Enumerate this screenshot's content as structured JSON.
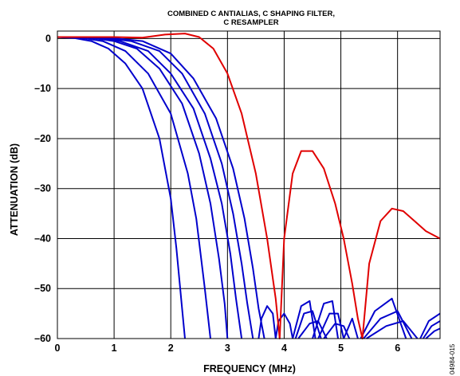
{
  "chart_data": {
    "type": "line",
    "title_line1": "COMBINED C ANTIALIAS, C SHAPING FILTER,",
    "title_line2": "C RESAMPLER",
    "xlabel": "FREQUENCY (MHz)",
    "ylabel": "ATTENUATION (dB)",
    "xlim": [
      0,
      6.75
    ],
    "ylim": [
      -60,
      1.5
    ],
    "x_ticks": [
      0,
      1,
      2,
      3,
      4,
      5,
      6
    ],
    "y_ticks": [
      0,
      -10,
      -20,
      -30,
      -40,
      -50,
      -60
    ],
    "x_tick_labels": [
      "0",
      "1",
      "2",
      "3",
      "4",
      "5",
      "6"
    ],
    "y_tick_labels": [
      "0",
      "–10",
      "–20",
      "–30",
      "–40",
      "–50",
      "–60"
    ],
    "grid": true,
    "series": [
      {
        "color": "#0000cc",
        "x": [
          0,
          0.3,
          0.6,
          0.9,
          1.2,
          1.5,
          1.8,
          2.0,
          2.1,
          2.2,
          2.25
        ],
        "y": [
          0.3,
          0.1,
          -0.5,
          -2,
          -5,
          -10,
          -20,
          -32,
          -42,
          -54,
          -60
        ]
      },
      {
        "color": "#0000cc",
        "x": [
          0,
          0.4,
          0.8,
          1.2,
          1.6,
          2.0,
          2.3,
          2.45,
          2.6,
          2.7
        ],
        "y": [
          0.3,
          0.2,
          -0.5,
          -2.5,
          -7,
          -15,
          -27,
          -36,
          -50,
          -60
        ]
      },
      {
        "color": "#0000cc",
        "x": [
          0,
          0.5,
          1.0,
          1.4,
          1.8,
          2.2,
          2.5,
          2.7,
          2.85,
          2.95,
          3.0
        ],
        "y": [
          0.3,
          0.3,
          -0.5,
          -2,
          -6,
          -13,
          -23,
          -33,
          -44,
          -53,
          -60
        ]
      },
      {
        "color": "#0000cc",
        "x": [
          0,
          0.6,
          1.1,
          1.6,
          2.0,
          2.4,
          2.7,
          2.9,
          3.05,
          3.15,
          3.25
        ],
        "y": [
          0.3,
          0.3,
          -0.5,
          -2.5,
          -7,
          -14,
          -24,
          -33,
          -43,
          -52,
          -60
        ]
      },
      {
        "color": "#0000cc",
        "x": [
          0,
          0.7,
          1.3,
          1.8,
          2.2,
          2.6,
          2.9,
          3.1,
          3.25,
          3.35,
          3.45
        ],
        "y": [
          0.3,
          0.3,
          -0.5,
          -2.5,
          -7,
          -15,
          -25,
          -35,
          -45,
          -53,
          -60
        ]
      },
      {
        "color": "#0000cc",
        "x": [
          0,
          0.8,
          1.5,
          2.0,
          2.4,
          2.8,
          3.1,
          3.3,
          3.45,
          3.55,
          3.65
        ],
        "y": [
          0.3,
          0.3,
          -0.5,
          -3,
          -8,
          -16,
          -26,
          -36,
          -46,
          -54,
          -60
        ]
      },
      {
        "color": "#e00000",
        "x": [
          0,
          0.5,
          1.0,
          1.5,
          1.9,
          2.25,
          2.5,
          2.75,
          3.0,
          3.25,
          3.5,
          3.7,
          3.85,
          3.92,
          4.0,
          4.15,
          4.3,
          4.5,
          4.7,
          4.9,
          5.05,
          5.2,
          5.3,
          5.38,
          5.5,
          5.7,
          5.9,
          6.1,
          6.3,
          6.5,
          6.75
        ],
        "y": [
          0.3,
          0.3,
          0.3,
          0.2,
          0.8,
          1.0,
          0.3,
          -2,
          -7,
          -15,
          -27,
          -40,
          -52,
          -60,
          -40,
          -27,
          -22.5,
          -22.5,
          -26,
          -33,
          -40,
          -49,
          -56,
          -60,
          -45,
          -36.5,
          -34,
          -34.5,
          -36.5,
          -38.5,
          -40
        ]
      }
    ],
    "stopband_lobes": [
      {
        "color": "#0000cc",
        "x": [
          3.55,
          3.6,
          3.7,
          3.8,
          3.85
        ],
        "y": [
          -60,
          -56,
          -53.5,
          -55,
          -60
        ]
      },
      {
        "color": "#0000cc",
        "x": [
          3.85,
          3.9,
          4.0,
          4.1,
          4.15
        ],
        "y": [
          -60,
          -56.5,
          -55,
          -57,
          -60
        ]
      },
      {
        "color": "#0000cc",
        "x": [
          4.15,
          4.3,
          4.45,
          4.55
        ],
        "y": [
          -60,
          -53.5,
          -52.5,
          -60
        ]
      },
      {
        "color": "#0000cc",
        "x": [
          4.2,
          4.35,
          4.5,
          4.65
        ],
        "y": [
          -60,
          -55,
          -54.5,
          -60
        ]
      },
      {
        "color": "#0000cc",
        "x": [
          4.25,
          4.45,
          4.6,
          4.75
        ],
        "y": [
          -60,
          -57,
          -56.5,
          -60
        ]
      },
      {
        "color": "#0000cc",
        "x": [
          4.5,
          4.7,
          4.85,
          4.95
        ],
        "y": [
          -60,
          -53,
          -52.5,
          -60
        ]
      },
      {
        "color": "#0000cc",
        "x": [
          4.6,
          4.8,
          4.95,
          5.05
        ],
        "y": [
          -60,
          -55,
          -55,
          -60
        ]
      },
      {
        "color": "#0000cc",
        "x": [
          4.7,
          4.9,
          5.05,
          5.15
        ],
        "y": [
          -60,
          -57,
          -57.5,
          -60
        ]
      },
      {
        "color": "#0000cc",
        "x": [
          5.05,
          5.2,
          5.3
        ],
        "y": [
          -60,
          -56,
          -60
        ]
      },
      {
        "color": "#0000cc",
        "x": [
          5.35,
          5.6,
          5.9,
          6.15
        ],
        "y": [
          -60,
          -54.5,
          -52,
          -60
        ]
      },
      {
        "color": "#0000cc",
        "x": [
          5.4,
          5.7,
          6.0,
          6.25
        ],
        "y": [
          -60,
          -56,
          -54.5,
          -60
        ]
      },
      {
        "color": "#0000cc",
        "x": [
          5.45,
          5.8,
          6.1,
          6.35
        ],
        "y": [
          -60,
          -57.5,
          -56.5,
          -60
        ]
      },
      {
        "color": "#0000cc",
        "x": [
          6.4,
          6.55,
          6.75
        ],
        "y": [
          -60,
          -56.5,
          -55
        ]
      },
      {
        "color": "#0000cc",
        "x": [
          6.45,
          6.6,
          6.75
        ],
        "y": [
          -60,
          -57.5,
          -56.5
        ]
      },
      {
        "color": "#0000cc",
        "x": [
          6.5,
          6.65,
          6.75
        ],
        "y": [
          -60,
          -58.5,
          -58
        ]
      }
    ],
    "figure_code": "04984-015"
  }
}
